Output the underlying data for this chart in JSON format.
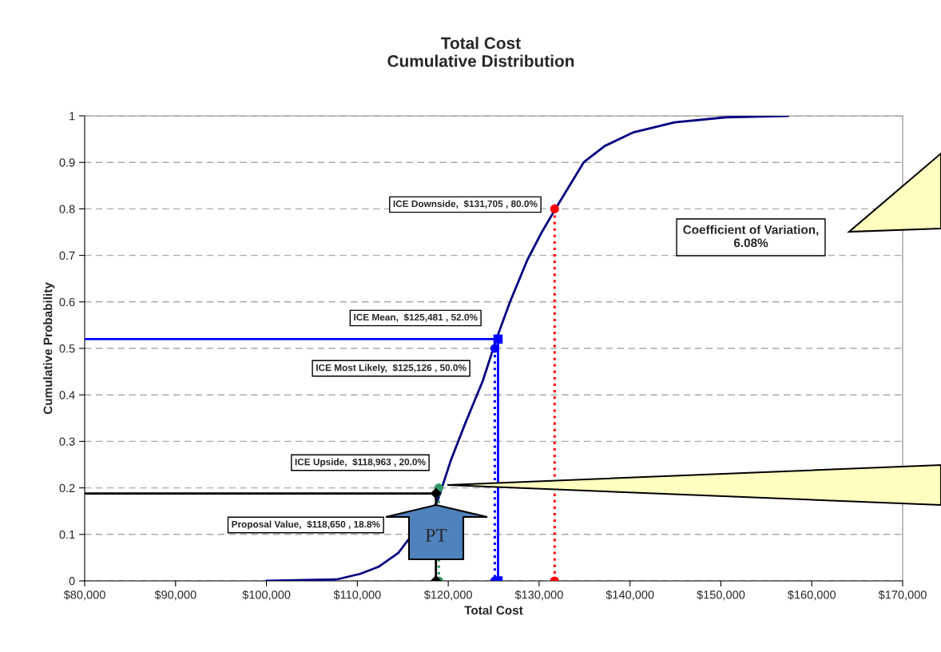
{
  "chart_data": {
    "type": "line",
    "title": "Total Cost\nCumulative Distribution",
    "xlabel": "Total Cost",
    "ylabel": "Cumulative Probability",
    "xlim": [
      80000,
      170000
    ],
    "xticks": [
      {
        "value": 80000,
        "label": "$80,000"
      },
      {
        "value": 90000,
        "label": "$90,000"
      },
      {
        "value": 100000,
        "label": "$100,000"
      },
      {
        "value": 110000,
        "label": "$110,000"
      },
      {
        "value": 120000,
        "label": "$120,000"
      },
      {
        "value": 130000,
        "label": "$130,000"
      },
      {
        "value": 140000,
        "label": "$140,000"
      },
      {
        "value": 150000,
        "label": "$150,000"
      },
      {
        "value": 160000,
        "label": "$160,000"
      },
      {
        "value": 170000,
        "label": "$170,000"
      }
    ],
    "ylim": [
      0,
      1
    ],
    "yticks": [
      0,
      0.1,
      0.2,
      0.3,
      0.4,
      0.5,
      0.6,
      0.7,
      0.8,
      0.9,
      1
    ],
    "grid": "y",
    "legend": false,
    "series": [
      {
        "type": "line",
        "color": "#000080",
        "line_style": "solid",
        "marker": "none",
        "x": [
          100000,
          107700,
          110300,
          112300,
          114500,
          118800,
          120300,
          121900,
          123800,
          125300,
          126800,
          128700,
          130300,
          131800,
          134900,
          137200,
          140300,
          144900,
          150600,
          157400
        ],
        "values": [
          0,
          0.003,
          0.015,
          0.03,
          0.06,
          0.17,
          0.26,
          0.34,
          0.43,
          0.52,
          0.6,
          0.69,
          0.75,
          0.8,
          0.9,
          0.935,
          0.964,
          0.986,
          0.997,
          1
        ]
      },
      {
        "type": "line",
        "color": "#ff0000",
        "line_style": "dotted",
        "marker": "circle",
        "x": [
          131705,
          131705
        ],
        "values": [
          0.8,
          0
        ]
      },
      {
        "type": "line",
        "color": "#0000ff",
        "line_style": "solid",
        "marker": "none",
        "x": [
          80000,
          125481,
          125481
        ],
        "values": [
          0.52,
          0.52,
          0
        ]
      },
      {
        "type": "scatter",
        "color": "#0000ff",
        "marker": "square",
        "x": [
          125481,
          125481
        ],
        "values": [
          0.52,
          0
        ]
      },
      {
        "type": "line",
        "color": "#0000ff",
        "line_style": "dotted",
        "marker": "circle",
        "x": [
          125126,
          125126
        ],
        "values": [
          0.5,
          0
        ]
      },
      {
        "type": "line",
        "color": "#339966",
        "line_style": "dotted",
        "marker": "circle",
        "x": [
          118963,
          118963
        ],
        "values": [
          0.2,
          0
        ]
      },
      {
        "type": "line",
        "color": "#000000",
        "line_style": "solid",
        "marker": "none",
        "x": [
          80000,
          118650,
          118650
        ],
        "values": [
          0.188,
          0.188,
          0
        ]
      },
      {
        "type": "scatter",
        "color": "#000000",
        "marker": "diamond",
        "x": [
          118650,
          118650
        ],
        "values": [
          0.188,
          0
        ]
      }
    ],
    "annotations": [
      "ICE Downside,  $131,705 , 80.0%",
      "ICE Mean,  $125,481 , 52.0%",
      "ICE Most Likely,  $125,126 , 50.0%",
      "ICE Upside,  $118,963 , 20.0%",
      "Proposal Value,  $118,650 , 18.8%",
      "Coefficient of Variation,\n6.08%",
      "PT"
    ]
  }
}
